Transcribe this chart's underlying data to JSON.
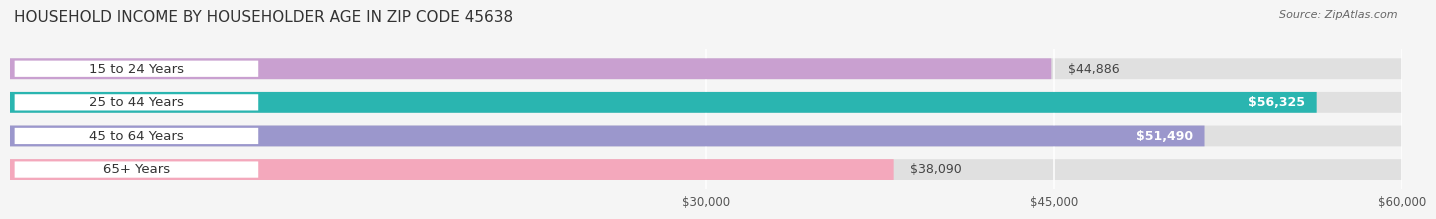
{
  "title": "HOUSEHOLD INCOME BY HOUSEHOLDER AGE IN ZIP CODE 45638",
  "source": "Source: ZipAtlas.com",
  "categories": [
    "15 to 24 Years",
    "25 to 44 Years",
    "45 to 64 Years",
    "65+ Years"
  ],
  "values": [
    44886,
    56325,
    51490,
    38090
  ],
  "bar_colors": [
    "#c9a0d0",
    "#2ab5b0",
    "#9b97cc",
    "#f4a8bc"
  ],
  "value_labels": [
    "$44,886",
    "$56,325",
    "$51,490",
    "$38,090"
  ],
  "label_inside": [
    false,
    true,
    true,
    false
  ],
  "xlim_min": 0,
  "xlim_max": 60000,
  "xticks": [
    30000,
    45000,
    60000
  ],
  "xtick_labels": [
    "$30,000",
    "$45,000",
    "$60,000"
  ],
  "title_fontsize": 11,
  "source_fontsize": 8,
  "bar_label_fontsize": 9,
  "category_fontsize": 9.5,
  "bar_height": 0.62,
  "background_color": "#f5f5f5",
  "bar_bg_color": "#e0e0e0",
  "white_label_bg": "#ffffff"
}
